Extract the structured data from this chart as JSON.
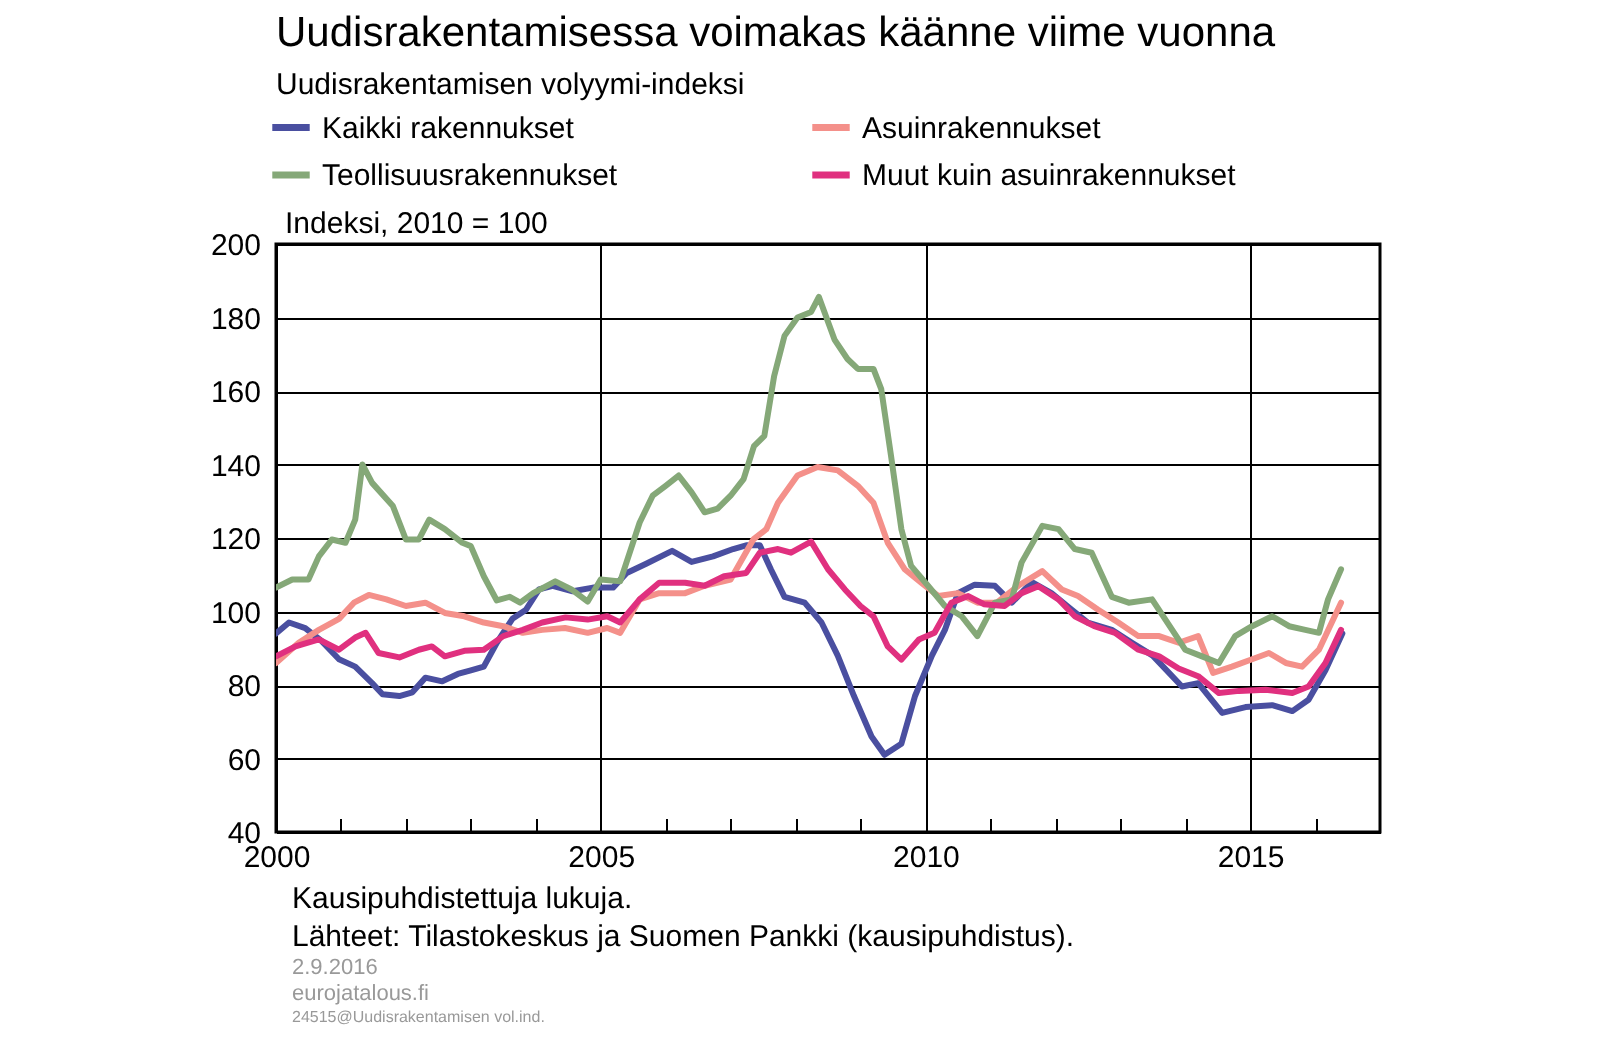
{
  "chart_data": {
    "type": "line",
    "title": "Uudisrakentamisessa voimakas käänne viime vuonna",
    "subtitle": "Uudisrakentamisen volyymi-indeksi",
    "ylabel": "Indeksi, 2010 = 100",
    "annotations": [
      "Kausipuhdistettuja lukuja.",
      "Lähteet: Tilastokeskus ja Suomen Pankki (kausipuhdistus).",
      "2.9.2016",
      "eurojatalous.fi",
      "24515@Uudisrakentamisen vol.ind."
    ],
    "xlim": [
      2000,
      2017
    ],
    "ylim": [
      40,
      200
    ],
    "xticks": [
      2000,
      {
        "value": 2001,
        "label": null
      },
      {
        "value": 2002,
        "label": null
      },
      {
        "value": 2003,
        "label": null
      },
      {
        "value": 2004,
        "label": null
      },
      2005,
      {
        "value": 2006,
        "label": null
      },
      {
        "value": 2007,
        "label": null
      },
      {
        "value": 2008,
        "label": null
      },
      {
        "value": 2009,
        "label": null
      },
      2010,
      {
        "value": 2011,
        "label": null
      },
      {
        "value": 2012,
        "label": null
      },
      {
        "value": 2013,
        "label": null
      },
      {
        "value": 2014,
        "label": null
      },
      2015,
      {
        "value": 2016,
        "label": null
      }
    ],
    "yticks": [
      40,
      60,
      80,
      100,
      120,
      140,
      160,
      180,
      200
    ],
    "grid": true,
    "legend": "top",
    "line_style": "solid",
    "marker": "none",
    "series": [
      {
        "name": "Kaikki rakennukset",
        "color": "#4a4fa0",
        "x": [
          2000.0,
          2000.2,
          2000.45,
          2000.7,
          2000.97,
          2001.22,
          2001.48,
          2001.64,
          2001.9,
          2002.1,
          2002.3,
          2002.56,
          2002.8,
          2003.0,
          2003.2,
          2003.4,
          2003.64,
          2003.85,
          2004.05,
          2004.26,
          2004.57,
          2004.88,
          2005.19,
          2005.4,
          2005.7,
          2006.1,
          2006.4,
          2006.73,
          2007.04,
          2007.24,
          2007.45,
          2007.62,
          2007.83,
          2008.14,
          2008.4,
          2008.65,
          2008.9,
          2009.17,
          2009.37,
          2009.63,
          2009.84,
          2010.1,
          2010.3,
          2010.5,
          2010.76,
          2011.07,
          2011.33,
          2011.64,
          2011.94,
          2012.25,
          2012.5,
          2012.87,
          2013.18,
          2013.5,
          2013.95,
          2014.2,
          2014.57,
          2014.93,
          2015.34,
          2015.65,
          2015.9,
          2016.16,
          2016.42
        ],
        "values": [
          94,
          97,
          95.5,
          92,
          87,
          85,
          80.5,
          77.5,
          77,
          78,
          82,
          81,
          83,
          84,
          85,
          91.5,
          98,
          100.5,
          106,
          107,
          105.5,
          106.5,
          106.5,
          110.5,
          113,
          116.5,
          113.5,
          115,
          117,
          118,
          118,
          111.5,
          104,
          102.4,
          97,
          88,
          77,
          66,
          61,
          64,
          77,
          88,
          95,
          105,
          107.3,
          107,
          102.4,
          108,
          105,
          100.5,
          97,
          95,
          91.5,
          88,
          79.6,
          80.5,
          72.4,
          74,
          74.5,
          72.9,
          76,
          84,
          94
        ]
      },
      {
        "name": "Asuinrakennukset",
        "color": "#f4908a",
        "x": [
          2000.0,
          2000.35,
          2000.66,
          2000.97,
          2001.2,
          2001.43,
          2001.7,
          2002.0,
          2002.3,
          2002.6,
          2002.9,
          2003.2,
          2003.5,
          2003.8,
          2004.1,
          2004.45,
          2004.8,
          2005.1,
          2005.3,
          2005.6,
          2005.9,
          2006.3,
          2006.6,
          2007.0,
          2007.35,
          2007.55,
          2007.73,
          2008.03,
          2008.34,
          2008.65,
          2008.96,
          2009.2,
          2009.42,
          2009.68,
          2009.94,
          2010.2,
          2010.5,
          2010.8,
          2011.1,
          2011.43,
          2011.8,
          2012.1,
          2012.35,
          2012.66,
          2012.97,
          2013.28,
          2013.6,
          2013.9,
          2014.2,
          2014.43,
          2014.72,
          2015.03,
          2015.29,
          2015.55,
          2015.8,
          2016.06,
          2016.4
        ],
        "values": [
          86,
          91.5,
          95,
          98,
          102.4,
          104.5,
          103.3,
          101.5,
          102.4,
          99.6,
          98.7,
          97,
          96,
          94.2,
          95,
          95.5,
          94.2,
          95.5,
          94.2,
          103.3,
          105,
          105,
          107,
          108.7,
          119.6,
          122.4,
          129.6,
          137,
          139.3,
          138.4,
          134.2,
          129.6,
          118.7,
          111.5,
          107.8,
          104.2,
          105,
          102.4,
          102.4,
          107,
          111,
          106,
          104.2,
          100.5,
          97,
          93.3,
          93.3,
          91.5,
          93.3,
          83.3,
          85,
          87,
          88.7,
          86,
          85,
          89.6,
          102.4
        ]
      },
      {
        "name": "Teollisuusrakennukset",
        "color": "#85a878",
        "x": [
          2000.0,
          2000.25,
          2000.5,
          2000.66,
          2000.86,
          2001.07,
          2001.22,
          2001.33,
          2001.48,
          2001.8,
          2002.0,
          2002.2,
          2002.36,
          2002.6,
          2002.87,
          2003.0,
          2003.2,
          2003.4,
          2003.6,
          2003.76,
          2003.96,
          2004.3,
          2004.55,
          2004.8,
          2005.0,
          2005.3,
          2005.6,
          2005.8,
          2006.0,
          2006.2,
          2006.4,
          2006.6,
          2006.8,
          2007.0,
          2007.2,
          2007.36,
          2007.52,
          2007.67,
          2007.83,
          2008.03,
          2008.24,
          2008.36,
          2008.6,
          2008.8,
          2008.96,
          2009.2,
          2009.32,
          2009.47,
          2009.63,
          2009.78,
          2010.04,
          2010.3,
          2010.56,
          2010.8,
          2011.07,
          2011.33,
          2011.48,
          2011.8,
          2012.05,
          2012.3,
          2012.56,
          2012.87,
          2013.13,
          2013.49,
          2013.8,
          2014.0,
          2014.26,
          2014.52,
          2014.77,
          2015.03,
          2015.34,
          2015.6,
          2015.85,
          2016.06,
          2016.2,
          2016.4
        ],
        "values": [
          106.5,
          108.7,
          108.7,
          115,
          119.6,
          118.7,
          125,
          140,
          135,
          128.7,
          119.6,
          119.6,
          125,
          122.4,
          118.7,
          117.8,
          109.6,
          103,
          104,
          102.4,
          105,
          108.2,
          106,
          102.7,
          108.7,
          108.2,
          124.2,
          131.5,
          134.2,
          137,
          132.4,
          127,
          128,
          131.5,
          136,
          145,
          147.8,
          164,
          175,
          180,
          181.5,
          185.6,
          174,
          168.7,
          166,
          166,
          160.5,
          142.4,
          122.4,
          112.4,
          107,
          101.5,
          98.7,
          93.3,
          102.4,
          103.3,
          113.3,
          123.3,
          122.4,
          117,
          116,
          104,
          102.4,
          103.3,
          95,
          89.6,
          87.8,
          86,
          93.3,
          96,
          98.7,
          96,
          95,
          94.2,
          103.3,
          111.5
        ]
      },
      {
        "name": "Muut kuin asuinrakennukset",
        "color": "#e0307f",
        "x": [
          2000.0,
          2000.3,
          2000.66,
          2000.97,
          2001.22,
          2001.38,
          2001.58,
          2001.9,
          2002.2,
          2002.4,
          2002.6,
          2002.9,
          2003.2,
          2003.5,
          2003.8,
          2004.1,
          2004.46,
          2004.8,
          2005.1,
          2005.3,
          2005.6,
          2005.9,
          2006.3,
          2006.6,
          2006.9,
          2007.24,
          2007.45,
          2007.73,
          2007.93,
          2008.24,
          2008.5,
          2008.76,
          2009.0,
          2009.2,
          2009.42,
          2009.63,
          2009.9,
          2010.14,
          2010.4,
          2010.66,
          2010.9,
          2011.22,
          2011.48,
          2011.74,
          2012.05,
          2012.3,
          2012.6,
          2012.92,
          2013.28,
          2013.6,
          2013.9,
          2014.2,
          2014.52,
          2014.83,
          2015.24,
          2015.65,
          2015.9,
          2016.16,
          2016.4
        ],
        "values": [
          87.8,
          90.5,
          92.4,
          89.6,
          92.9,
          94.2,
          88.7,
          87.5,
          89.6,
          90.5,
          87.8,
          89.3,
          89.6,
          93.3,
          95,
          97,
          98.4,
          97.8,
          98.7,
          97,
          103.3,
          107.8,
          107.8,
          107,
          109.6,
          110.5,
          116,
          117,
          116,
          119,
          111.5,
          106,
          101.5,
          98.7,
          90.5,
          86.9,
          92.4,
          94.2,
          102.4,
          104.2,
          102,
          101.5,
          105,
          106.9,
          103.3,
          98.7,
          96,
          94.2,
          89.6,
          87.8,
          84.5,
          82.4,
          77.8,
          78.4,
          78.7,
          77.8,
          79.6,
          86,
          95
        ]
      }
    ]
  }
}
